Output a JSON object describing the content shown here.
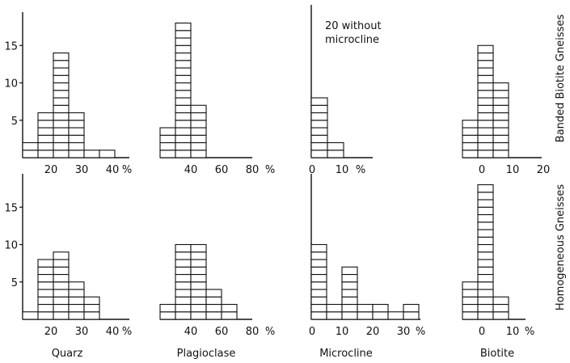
{
  "row_labels": [
    "Banded  Biotite  Gneisses",
    "Homogeneous  Gneisses"
  ],
  "column_labels": [
    "Quarz",
    "Plagioclase",
    "Microcline",
    "Biotite"
  ],
  "note": {
    "line1": "20 without",
    "line2": "microcline"
  },
  "chart_data": [
    {
      "type": "bar",
      "mineral": "Quarz",
      "group": "Banded Biotite Gneisses",
      "bin_edges": [
        15,
        20,
        25,
        30,
        35,
        40,
        45
      ],
      "values": [
        2,
        6,
        14,
        6,
        1,
        1
      ],
      "ylim": [
        0,
        18
      ],
      "yticks": [
        "5",
        "10",
        "15"
      ],
      "xticks": [
        "20",
        "30",
        "40"
      ],
      "unit": "%"
    },
    {
      "type": "bar",
      "mineral": "Plagioclase",
      "group": "Banded Biotite Gneisses",
      "bin_edges": [
        40,
        50,
        60,
        70
      ],
      "values": [
        4,
        18,
        7
      ],
      "ylim": [
        0,
        18
      ],
      "xticks": [
        "40",
        "60",
        "80"
      ],
      "unit": "%"
    },
    {
      "type": "bar",
      "mineral": "Microcline",
      "group": "Banded Biotite Gneisses",
      "bin_edges": [
        0,
        5,
        10
      ],
      "values": [
        8,
        2
      ],
      "ylim": [
        0,
        18
      ],
      "xticks": [
        "0",
        "10"
      ],
      "unit": "%"
    },
    {
      "type": "bar",
      "mineral": "Biotite",
      "group": "Banded Biotite Gneisses",
      "bin_edges": [
        5,
        10,
        15,
        20
      ],
      "values": [
        5,
        15,
        10
      ],
      "ylim": [
        0,
        18
      ],
      "xticks": [
        "0",
        "10",
        "20"
      ],
      "unit": ""
    },
    {
      "type": "bar",
      "mineral": "Quarz",
      "group": "Homogeneous Gneisses",
      "bin_edges": [
        15,
        20,
        25,
        30,
        35,
        40
      ],
      "values": [
        1,
        8,
        9,
        5,
        3
      ],
      "ylim": [
        0,
        18
      ],
      "yticks": [
        "5",
        "10",
        "15"
      ],
      "xticks": [
        "20",
        "30",
        "40"
      ],
      "unit": "%"
    },
    {
      "type": "bar",
      "mineral": "Plagioclase",
      "group": "Homogeneous Gneisses",
      "bin_edges": [
        30,
        40,
        50,
        60,
        70,
        80
      ],
      "values": [
        2,
        10,
        10,
        4,
        2
      ],
      "ylim": [
        0,
        18
      ],
      "xticks": [
        "40",
        "60",
        "80"
      ],
      "unit": "%"
    },
    {
      "type": "bar",
      "mineral": "Microcline",
      "group": "Homogeneous Gneisses",
      "bin_edges": [
        0,
        5,
        10,
        15,
        20,
        25,
        30,
        35
      ],
      "values": [
        10,
        2,
        7,
        2,
        2,
        1,
        2
      ],
      "ylim": [
        0,
        18
      ],
      "xticks": [
        "0",
        "10",
        "20",
        "30"
      ],
      "unit": "%"
    },
    {
      "type": "bar",
      "mineral": "Biotite",
      "group": "Homogeneous Gneisses",
      "bin_edges": [
        0,
        5,
        10,
        15
      ],
      "values": [
        5,
        18,
        3
      ],
      "ylim": [
        0,
        18
      ],
      "xticks": [
        "0",
        "10"
      ],
      "unit": "%"
    }
  ]
}
